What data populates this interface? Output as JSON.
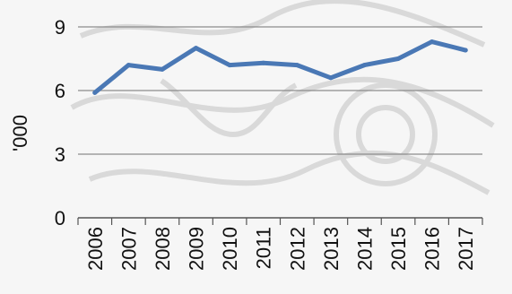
{
  "chart_data": {
    "type": "line",
    "title": "",
    "xlabel": "",
    "ylabel": "'000",
    "ylim": [
      0,
      9
    ],
    "yticks": [
      0,
      3,
      6,
      9
    ],
    "grid": true,
    "legend": "none",
    "categories": [
      "2006",
      "2007",
      "2008",
      "2009",
      "2010",
      "2011",
      "2012",
      "2013",
      "2014",
      "2015",
      "2016",
      "2017"
    ],
    "series": [
      {
        "color": "#4a78b5",
        "values": [
          5.9,
          7.2,
          7.0,
          8.0,
          7.2,
          7.3,
          7.2,
          6.6,
          7.2,
          7.5,
          8.3,
          7.9
        ]
      }
    ]
  }
}
